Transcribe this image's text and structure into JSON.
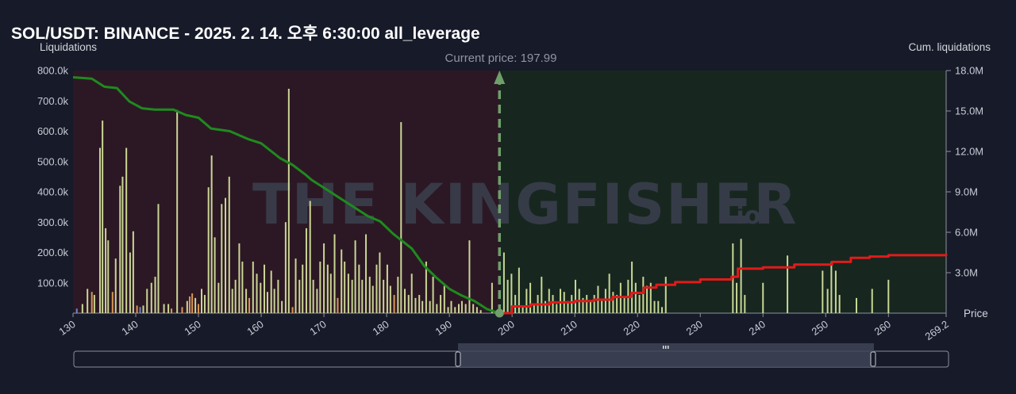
{
  "title": "SOL/USDT: BINANCE - 2025. 2. 14. 오후 6:30:00 all_leverage",
  "watermark": "THE KINGFISHER",
  "watermark_suffix": ".io",
  "colors": {
    "background": "#161a29",
    "short_cum_line": "#1f8a1f",
    "long_cum_line": "#e01b1b",
    "bars_light": "#d8e6a0",
    "bars_orange": "#e9a35a",
    "bars_blue": "#7b8fd6",
    "current_price_marker": "#6f9f6b",
    "left_fill": "#2c1824",
    "right_fill": "#17271f"
  },
  "chart_data": {
    "type": "bar+line",
    "title": "SOL/USDT: BINANCE - 2025. 2. 14. 오후 6:30:00 all_leverage",
    "xlabel": "Price",
    "ylabel_left": "Liquidations",
    "ylabel_right": "Cum. liquidations",
    "xlim": [
      130,
      269.2
    ],
    "ylim_left": [
      0,
      800000
    ],
    "ylim_right": [
      0,
      18000000
    ],
    "x_ticks": [
      "130",
      "140",
      "150",
      "160",
      "170",
      "180",
      "190",
      "200",
      "210",
      "220",
      "230",
      "240",
      "250",
      "260",
      "269.2"
    ],
    "y_left_ticks": [
      "100.0k",
      "200.0k",
      "300.0k",
      "400.0k",
      "500.0k",
      "600.0k",
      "700.0k",
      "800.0k"
    ],
    "y_right_ticks": [
      "3.0M",
      "6.0M",
      "9.0M",
      "12.0M",
      "15.0M",
      "18.0M"
    ],
    "current_price": 197.99,
    "current_price_label": "Current price: 197.99",
    "bars": [
      {
        "x": 130.6,
        "v": 15000,
        "c": "blue"
      },
      {
        "x": 131.5,
        "v": 30000,
        "c": "light"
      },
      {
        "x": 132.3,
        "v": 80000,
        "c": "light"
      },
      {
        "x": 133.0,
        "v": 70000,
        "c": "orange"
      },
      {
        "x": 133.4,
        "v": 60000,
        "c": "light"
      },
      {
        "x": 134.3,
        "v": 545000,
        "c": "light"
      },
      {
        "x": 134.7,
        "v": 635000,
        "c": "light"
      },
      {
        "x": 135.2,
        "v": 280000,
        "c": "light"
      },
      {
        "x": 135.6,
        "v": 240000,
        "c": "light"
      },
      {
        "x": 136.3,
        "v": 70000,
        "c": "orange"
      },
      {
        "x": 136.8,
        "v": 180000,
        "c": "light"
      },
      {
        "x": 137.5,
        "v": 420000,
        "c": "light"
      },
      {
        "x": 137.9,
        "v": 450000,
        "c": "light"
      },
      {
        "x": 138.5,
        "v": 545000,
        "c": "light"
      },
      {
        "x": 139.1,
        "v": 200000,
        "c": "light"
      },
      {
        "x": 139.6,
        "v": 270000,
        "c": "light"
      },
      {
        "x": 140.2,
        "v": 25000,
        "c": "orange"
      },
      {
        "x": 140.7,
        "v": 20000,
        "c": "blue"
      },
      {
        "x": 141.2,
        "v": 25000,
        "c": "light"
      },
      {
        "x": 141.8,
        "v": 80000,
        "c": "light"
      },
      {
        "x": 142.5,
        "v": 100000,
        "c": "light"
      },
      {
        "x": 143.1,
        "v": 120000,
        "c": "light"
      },
      {
        "x": 143.6,
        "v": 360000,
        "c": "light"
      },
      {
        "x": 144.5,
        "v": 30000,
        "c": "light"
      },
      {
        "x": 145.2,
        "v": 30000,
        "c": "light"
      },
      {
        "x": 145.7,
        "v": 15000,
        "c": "orange"
      },
      {
        "x": 146.6,
        "v": 670000,
        "c": "light"
      },
      {
        "x": 147.4,
        "v": 20000,
        "c": "orange"
      },
      {
        "x": 148.2,
        "v": 40000,
        "c": "light"
      },
      {
        "x": 148.6,
        "v": 55000,
        "c": "orange"
      },
      {
        "x": 149.0,
        "v": 65000,
        "c": "orange"
      },
      {
        "x": 149.5,
        "v": 50000,
        "c": "light"
      },
      {
        "x": 150.0,
        "v": 30000,
        "c": "orange"
      },
      {
        "x": 150.5,
        "v": 80000,
        "c": "light"
      },
      {
        "x": 151.0,
        "v": 60000,
        "c": "light"
      },
      {
        "x": 151.6,
        "v": 415000,
        "c": "light"
      },
      {
        "x": 152.1,
        "v": 520000,
        "c": "light"
      },
      {
        "x": 152.6,
        "v": 250000,
        "c": "light"
      },
      {
        "x": 153.2,
        "v": 100000,
        "c": "light"
      },
      {
        "x": 153.7,
        "v": 360000,
        "c": "light"
      },
      {
        "x": 154.3,
        "v": 380000,
        "c": "light"
      },
      {
        "x": 154.9,
        "v": 450000,
        "c": "light"
      },
      {
        "x": 155.4,
        "v": 80000,
        "c": "light"
      },
      {
        "x": 155.9,
        "v": 110000,
        "c": "light"
      },
      {
        "x": 156.5,
        "v": 230000,
        "c": "light"
      },
      {
        "x": 157.0,
        "v": 170000,
        "c": "light"
      },
      {
        "x": 157.6,
        "v": 80000,
        "c": "light"
      },
      {
        "x": 158.1,
        "v": 50000,
        "c": "orange"
      },
      {
        "x": 158.7,
        "v": 170000,
        "c": "light"
      },
      {
        "x": 159.3,
        "v": 130000,
        "c": "light"
      },
      {
        "x": 159.9,
        "v": 100000,
        "c": "light"
      },
      {
        "x": 160.5,
        "v": 160000,
        "c": "light"
      },
      {
        "x": 161.0,
        "v": 70000,
        "c": "light"
      },
      {
        "x": 161.6,
        "v": 140000,
        "c": "light"
      },
      {
        "x": 162.1,
        "v": 80000,
        "c": "light"
      },
      {
        "x": 162.7,
        "v": 110000,
        "c": "light"
      },
      {
        "x": 163.3,
        "v": 40000,
        "c": "light"
      },
      {
        "x": 163.9,
        "v": 300000,
        "c": "light"
      },
      {
        "x": 164.4,
        "v": 740000,
        "c": "light"
      },
      {
        "x": 165.0,
        "v": 20000,
        "c": "orange"
      },
      {
        "x": 165.5,
        "v": 180000,
        "c": "light"
      },
      {
        "x": 166.1,
        "v": 110000,
        "c": "light"
      },
      {
        "x": 166.6,
        "v": 160000,
        "c": "light"
      },
      {
        "x": 167.2,
        "v": 280000,
        "c": "light"
      },
      {
        "x": 167.8,
        "v": 370000,
        "c": "light"
      },
      {
        "x": 168.3,
        "v": 110000,
        "c": "light"
      },
      {
        "x": 168.9,
        "v": 80000,
        "c": "light"
      },
      {
        "x": 169.4,
        "v": 170000,
        "c": "light"
      },
      {
        "x": 170.0,
        "v": 230000,
        "c": "light"
      },
      {
        "x": 170.6,
        "v": 160000,
        "c": "light"
      },
      {
        "x": 171.1,
        "v": 130000,
        "c": "light"
      },
      {
        "x": 171.7,
        "v": 260000,
        "c": "light"
      },
      {
        "x": 172.2,
        "v": 50000,
        "c": "orange"
      },
      {
        "x": 172.8,
        "v": 210000,
        "c": "light"
      },
      {
        "x": 173.3,
        "v": 170000,
        "c": "light"
      },
      {
        "x": 173.9,
        "v": 130000,
        "c": "light"
      },
      {
        "x": 174.5,
        "v": 110000,
        "c": "light"
      },
      {
        "x": 175.0,
        "v": 240000,
        "c": "light"
      },
      {
        "x": 175.6,
        "v": 160000,
        "c": "light"
      },
      {
        "x": 176.1,
        "v": 110000,
        "c": "light"
      },
      {
        "x": 176.7,
        "v": 260000,
        "c": "light"
      },
      {
        "x": 177.3,
        "v": 120000,
        "c": "light"
      },
      {
        "x": 177.8,
        "v": 90000,
        "c": "light"
      },
      {
        "x": 178.4,
        "v": 160000,
        "c": "light"
      },
      {
        "x": 178.9,
        "v": 200000,
        "c": "light"
      },
      {
        "x": 179.5,
        "v": 110000,
        "c": "light"
      },
      {
        "x": 180.1,
        "v": 160000,
        "c": "light"
      },
      {
        "x": 180.6,
        "v": 90000,
        "c": "light"
      },
      {
        "x": 181.2,
        "v": 60000,
        "c": "orange"
      },
      {
        "x": 181.8,
        "v": 120000,
        "c": "light"
      },
      {
        "x": 182.3,
        "v": 630000,
        "c": "light"
      },
      {
        "x": 182.9,
        "v": 80000,
        "c": "light"
      },
      {
        "x": 183.5,
        "v": 60000,
        "c": "light"
      },
      {
        "x": 184.0,
        "v": 130000,
        "c": "light"
      },
      {
        "x": 184.6,
        "v": 50000,
        "c": "light"
      },
      {
        "x": 185.2,
        "v": 60000,
        "c": "light"
      },
      {
        "x": 185.7,
        "v": 40000,
        "c": "light"
      },
      {
        "x": 186.3,
        "v": 170000,
        "c": "light"
      },
      {
        "x": 186.9,
        "v": 40000,
        "c": "light"
      },
      {
        "x": 187.4,
        "v": 120000,
        "c": "light"
      },
      {
        "x": 188.0,
        "v": 30000,
        "c": "light"
      },
      {
        "x": 188.6,
        "v": 60000,
        "c": "light"
      },
      {
        "x": 189.2,
        "v": 90000,
        "c": "light"
      },
      {
        "x": 189.8,
        "v": 20000,
        "c": "light"
      },
      {
        "x": 190.3,
        "v": 40000,
        "c": "light"
      },
      {
        "x": 190.9,
        "v": 20000,
        "c": "light"
      },
      {
        "x": 191.5,
        "v": 30000,
        "c": "light"
      },
      {
        "x": 192.0,
        "v": 40000,
        "c": "light"
      },
      {
        "x": 192.6,
        "v": 30000,
        "c": "light"
      },
      {
        "x": 193.2,
        "v": 240000,
        "c": "light"
      },
      {
        "x": 193.8,
        "v": 30000,
        "c": "light"
      },
      {
        "x": 194.4,
        "v": 20000,
        "c": "light"
      },
      {
        "x": 195.0,
        "v": 10000,
        "c": "light"
      },
      {
        "x": 196.8,
        "v": 100000,
        "c": "light"
      },
      {
        "x": 198.7,
        "v": 200000,
        "c": "light"
      },
      {
        "x": 199.3,
        "v": 110000,
        "c": "light"
      },
      {
        "x": 199.9,
        "v": 130000,
        "c": "light"
      },
      {
        "x": 200.5,
        "v": 60000,
        "c": "light"
      },
      {
        "x": 201.1,
        "v": 150000,
        "c": "light"
      },
      {
        "x": 201.7,
        "v": 20000,
        "c": "light"
      },
      {
        "x": 202.3,
        "v": 80000,
        "c": "light"
      },
      {
        "x": 202.9,
        "v": 100000,
        "c": "light"
      },
      {
        "x": 203.5,
        "v": 30000,
        "c": "light"
      },
      {
        "x": 204.1,
        "v": 60000,
        "c": "light"
      },
      {
        "x": 204.7,
        "v": 120000,
        "c": "light"
      },
      {
        "x": 205.3,
        "v": 40000,
        "c": "light"
      },
      {
        "x": 205.9,
        "v": 80000,
        "c": "light"
      },
      {
        "x": 206.5,
        "v": 60000,
        "c": "light"
      },
      {
        "x": 207.1,
        "v": 30000,
        "c": "light"
      },
      {
        "x": 207.7,
        "v": 80000,
        "c": "light"
      },
      {
        "x": 208.3,
        "v": 70000,
        "c": "light"
      },
      {
        "x": 208.9,
        "v": 40000,
        "c": "light"
      },
      {
        "x": 209.5,
        "v": 60000,
        "c": "light"
      },
      {
        "x": 210.1,
        "v": 110000,
        "c": "light"
      },
      {
        "x": 210.7,
        "v": 80000,
        "c": "light"
      },
      {
        "x": 211.3,
        "v": 50000,
        "c": "light"
      },
      {
        "x": 211.9,
        "v": 60000,
        "c": "light"
      },
      {
        "x": 212.5,
        "v": 40000,
        "c": "light"
      },
      {
        "x": 213.1,
        "v": 60000,
        "c": "light"
      },
      {
        "x": 213.7,
        "v": 90000,
        "c": "light"
      },
      {
        "x": 214.3,
        "v": 40000,
        "c": "light"
      },
      {
        "x": 214.9,
        "v": 80000,
        "c": "light"
      },
      {
        "x": 215.5,
        "v": 130000,
        "c": "light"
      },
      {
        "x": 216.1,
        "v": 70000,
        "c": "light"
      },
      {
        "x": 216.7,
        "v": 60000,
        "c": "light"
      },
      {
        "x": 217.3,
        "v": 100000,
        "c": "light"
      },
      {
        "x": 217.9,
        "v": 50000,
        "c": "light"
      },
      {
        "x": 218.5,
        "v": 110000,
        "c": "light"
      },
      {
        "x": 219.1,
        "v": 170000,
        "c": "light"
      },
      {
        "x": 219.7,
        "v": 100000,
        "c": "light"
      },
      {
        "x": 220.3,
        "v": 60000,
        "c": "light"
      },
      {
        "x": 220.9,
        "v": 120000,
        "c": "light"
      },
      {
        "x": 221.5,
        "v": 90000,
        "c": "light"
      },
      {
        "x": 222.1,
        "v": 100000,
        "c": "light"
      },
      {
        "x": 222.7,
        "v": 40000,
        "c": "light"
      },
      {
        "x": 223.3,
        "v": 40000,
        "c": "light"
      },
      {
        "x": 223.9,
        "v": 20000,
        "c": "light"
      },
      {
        "x": 224.5,
        "v": 120000,
        "c": "light"
      },
      {
        "x": 235.2,
        "v": 230000,
        "c": "light"
      },
      {
        "x": 235.8,
        "v": 100000,
        "c": "light"
      },
      {
        "x": 236.5,
        "v": 245000,
        "c": "light"
      },
      {
        "x": 237.1,
        "v": 60000,
        "c": "light"
      },
      {
        "x": 240.0,
        "v": 100000,
        "c": "light"
      },
      {
        "x": 243.9,
        "v": 190000,
        "c": "light"
      },
      {
        "x": 249.5,
        "v": 140000,
        "c": "light"
      },
      {
        "x": 250.3,
        "v": 80000,
        "c": "light"
      },
      {
        "x": 250.9,
        "v": 170000,
        "c": "light"
      },
      {
        "x": 251.6,
        "v": 140000,
        "c": "light"
      },
      {
        "x": 252.2,
        "v": 60000,
        "c": "light"
      },
      {
        "x": 254.9,
        "v": 50000,
        "c": "light"
      },
      {
        "x": 257.4,
        "v": 80000,
        "c": "light"
      },
      {
        "x": 260.0,
        "v": 110000,
        "c": "light"
      }
    ],
    "cum_short": [
      [
        130,
        17500000
      ],
      [
        133,
        17400000
      ],
      [
        135,
        16800000
      ],
      [
        137,
        16700000
      ],
      [
        139,
        15700000
      ],
      [
        141,
        15200000
      ],
      [
        143,
        15100000
      ],
      [
        146,
        15100000
      ],
      [
        148,
        14700000
      ],
      [
        150,
        14500000
      ],
      [
        152,
        13700000
      ],
      [
        155,
        13500000
      ],
      [
        158,
        12900000
      ],
      [
        160,
        12600000
      ],
      [
        163,
        11500000
      ],
      [
        165,
        11000000
      ],
      [
        167,
        10300000
      ],
      [
        168,
        9900000
      ],
      [
        170,
        9300000
      ],
      [
        173,
        8400000
      ],
      [
        175,
        7800000
      ],
      [
        177,
        7200000
      ],
      [
        179,
        6800000
      ],
      [
        181,
        5900000
      ],
      [
        184,
        4800000
      ],
      [
        186,
        3500000
      ],
      [
        188,
        2600000
      ],
      [
        190,
        1800000
      ],
      [
        192,
        1300000
      ],
      [
        194,
        900000
      ],
      [
        196,
        300000
      ],
      [
        197.99,
        0
      ]
    ],
    "cum_long": [
      [
        197.99,
        0
      ],
      [
        200,
        500000
      ],
      [
        203,
        650000
      ],
      [
        206,
        800000
      ],
      [
        210,
        900000
      ],
      [
        213,
        1000000
      ],
      [
        216,
        1200000
      ],
      [
        219,
        1500000
      ],
      [
        221,
        1900000
      ],
      [
        223,
        2100000
      ],
      [
        226,
        2300000
      ],
      [
        230,
        2500000
      ],
      [
        235,
        2700000
      ],
      [
        236,
        3300000
      ],
      [
        240,
        3400000
      ],
      [
        245,
        3600000
      ],
      [
        251,
        3800000
      ],
      [
        254,
        4100000
      ],
      [
        257,
        4200000
      ],
      [
        260,
        4300000
      ],
      [
        269.2,
        4400000
      ]
    ]
  }
}
